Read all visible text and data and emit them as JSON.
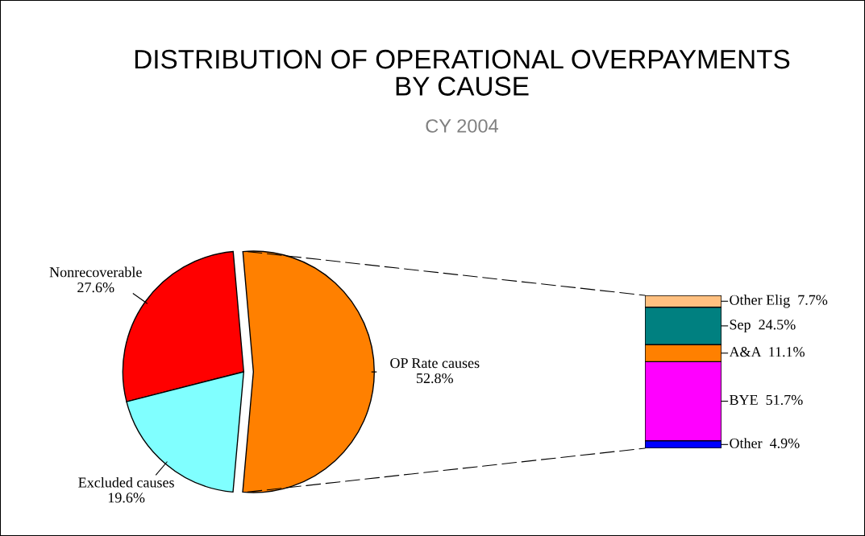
{
  "chart_data": [
    {
      "type": "pie",
      "title": "DISTRIBUTION OF OPERATIONAL OVERPAYMENTS\nBY CAUSE",
      "subtitle": "CY 2004",
      "categories": [
        "Nonrecoverable",
        "Excluded causes",
        "OP Rate causes"
      ],
      "values": [
        27.6,
        19.6,
        52.8
      ],
      "value_labels": [
        "27.6%",
        "19.6%",
        "52.8%"
      ],
      "colors": [
        "#ff0000",
        "#80ffff",
        "#ff8000"
      ]
    },
    {
      "type": "bar",
      "stacked": true,
      "categories": [
        null
      ],
      "series": [
        {
          "color": "#0000ff",
          "values": [
            4.9
          ],
          "value_labels": [
            "Other  4.9%"
          ]
        },
        {
          "color": "#ff00ff",
          "values": [
            51.7
          ],
          "value_labels": [
            "BYE  51.7%"
          ]
        },
        {
          "color": "#ff8000",
          "values": [
            11.1
          ],
          "value_labels": [
            "A&A  11.1%"
          ]
        },
        {
          "color": "#008080",
          "values": [
            24.5
          ],
          "value_labels": [
            "Sep  24.5%"
          ]
        },
        {
          "color": "#ffc080",
          "values": [
            7.7
          ],
          "value_labels": [
            "Other Elig  7.7%"
          ]
        }
      ]
    }
  ]
}
